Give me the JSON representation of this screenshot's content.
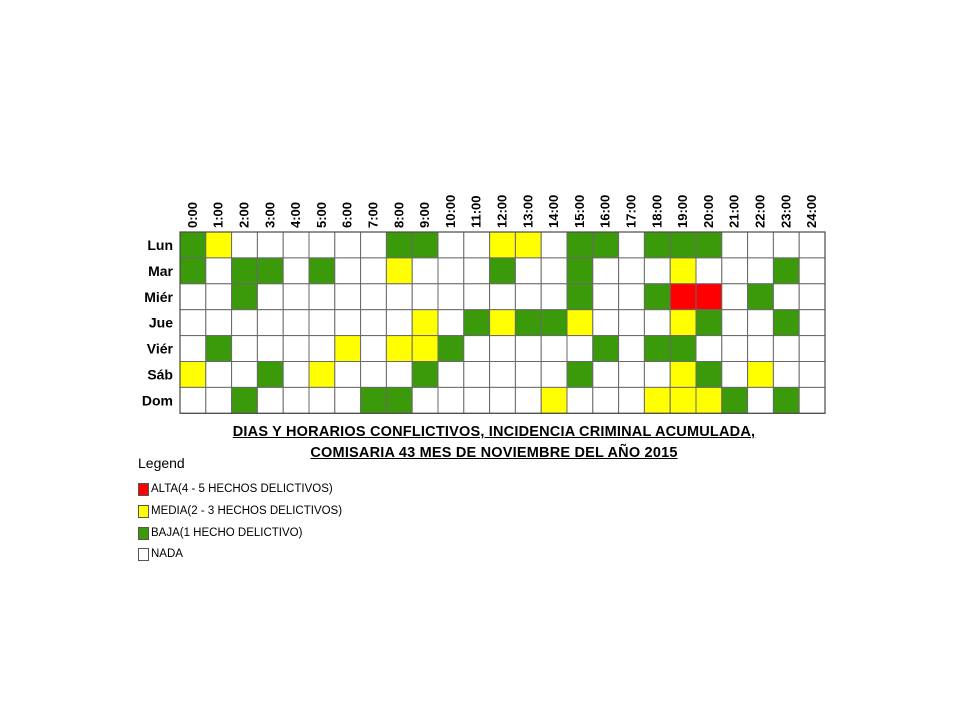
{
  "chart_data": {
    "type": "heatmap",
    "title": "DIAS Y HORARIOS CONFLICTIVOS, INCIDENCIA CRIMINAL ACUMULADA,",
    "subtitle": "COMISARIA 43 MES DE NOVIEMBRE DEL AÑO 2015",
    "x_labels": [
      "0:00",
      "1:00",
      "2:00",
      "3:00",
      "4:00",
      "5:00",
      "6:00",
      "7:00",
      "8:00",
      "9:00",
      "10:00",
      "11:00",
      "12:00",
      "13:00",
      "14:00",
      "15:00",
      "16:00",
      "17:00",
      "18:00",
      "19:00",
      "20:00",
      "21:00",
      "22:00",
      "23:00",
      "24:00"
    ],
    "y_labels": [
      "Lun",
      "Mar",
      "Miér",
      "Jue",
      "Viér",
      "Sáb",
      "Dom"
    ],
    "level_colors": {
      "0": "#ffffff",
      "1": "#3a9a0a",
      "2": "#ffff00",
      "3": "#ff0000"
    },
    "values": [
      [
        1,
        2,
        0,
        0,
        0,
        0,
        0,
        0,
        1,
        1,
        0,
        0,
        2,
        2,
        0,
        1,
        1,
        0,
        1,
        1,
        1,
        0,
        0,
        0,
        0
      ],
      [
        1,
        0,
        1,
        1,
        0,
        1,
        0,
        0,
        2,
        0,
        0,
        0,
        1,
        0,
        0,
        1,
        0,
        0,
        0,
        2,
        0,
        0,
        0,
        1,
        0
      ],
      [
        0,
        0,
        1,
        0,
        0,
        0,
        0,
        0,
        0,
        0,
        0,
        0,
        0,
        0,
        0,
        1,
        0,
        0,
        1,
        3,
        3,
        0,
        1,
        0,
        0
      ],
      [
        0,
        0,
        0,
        0,
        0,
        0,
        0,
        0,
        0,
        2,
        0,
        1,
        2,
        1,
        1,
        2,
        0,
        0,
        0,
        2,
        1,
        0,
        0,
        1,
        0
      ],
      [
        0,
        1,
        0,
        0,
        0,
        0,
        2,
        0,
        2,
        2,
        1,
        0,
        0,
        0,
        0,
        0,
        1,
        0,
        1,
        1,
        0,
        0,
        0,
        0,
        0
      ],
      [
        2,
        0,
        0,
        1,
        0,
        2,
        0,
        0,
        0,
        1,
        0,
        0,
        0,
        0,
        0,
        1,
        0,
        0,
        0,
        2,
        1,
        0,
        2,
        0,
        0
      ],
      [
        0,
        0,
        1,
        0,
        0,
        0,
        0,
        1,
        1,
        0,
        0,
        0,
        0,
        0,
        2,
        0,
        0,
        0,
        2,
        2,
        2,
        1,
        0,
        1,
        0
      ]
    ],
    "legend": {
      "title": "Legend",
      "items": [
        {
          "level": 3,
          "label": "ALTA(4 - 5 HECHOS DELICTIVOS)",
          "color": "#ff0000"
        },
        {
          "level": 2,
          "label": "MEDIA(2 - 3 HECHOS DELICTIVOS)",
          "color": "#ffff00"
        },
        {
          "level": 1,
          "label": "BAJA(1 HECHO DELICTIVO)",
          "color": "#3a9a0a"
        },
        {
          "level": 0,
          "label": "NADA",
          "color": "#ffffff"
        }
      ]
    }
  }
}
